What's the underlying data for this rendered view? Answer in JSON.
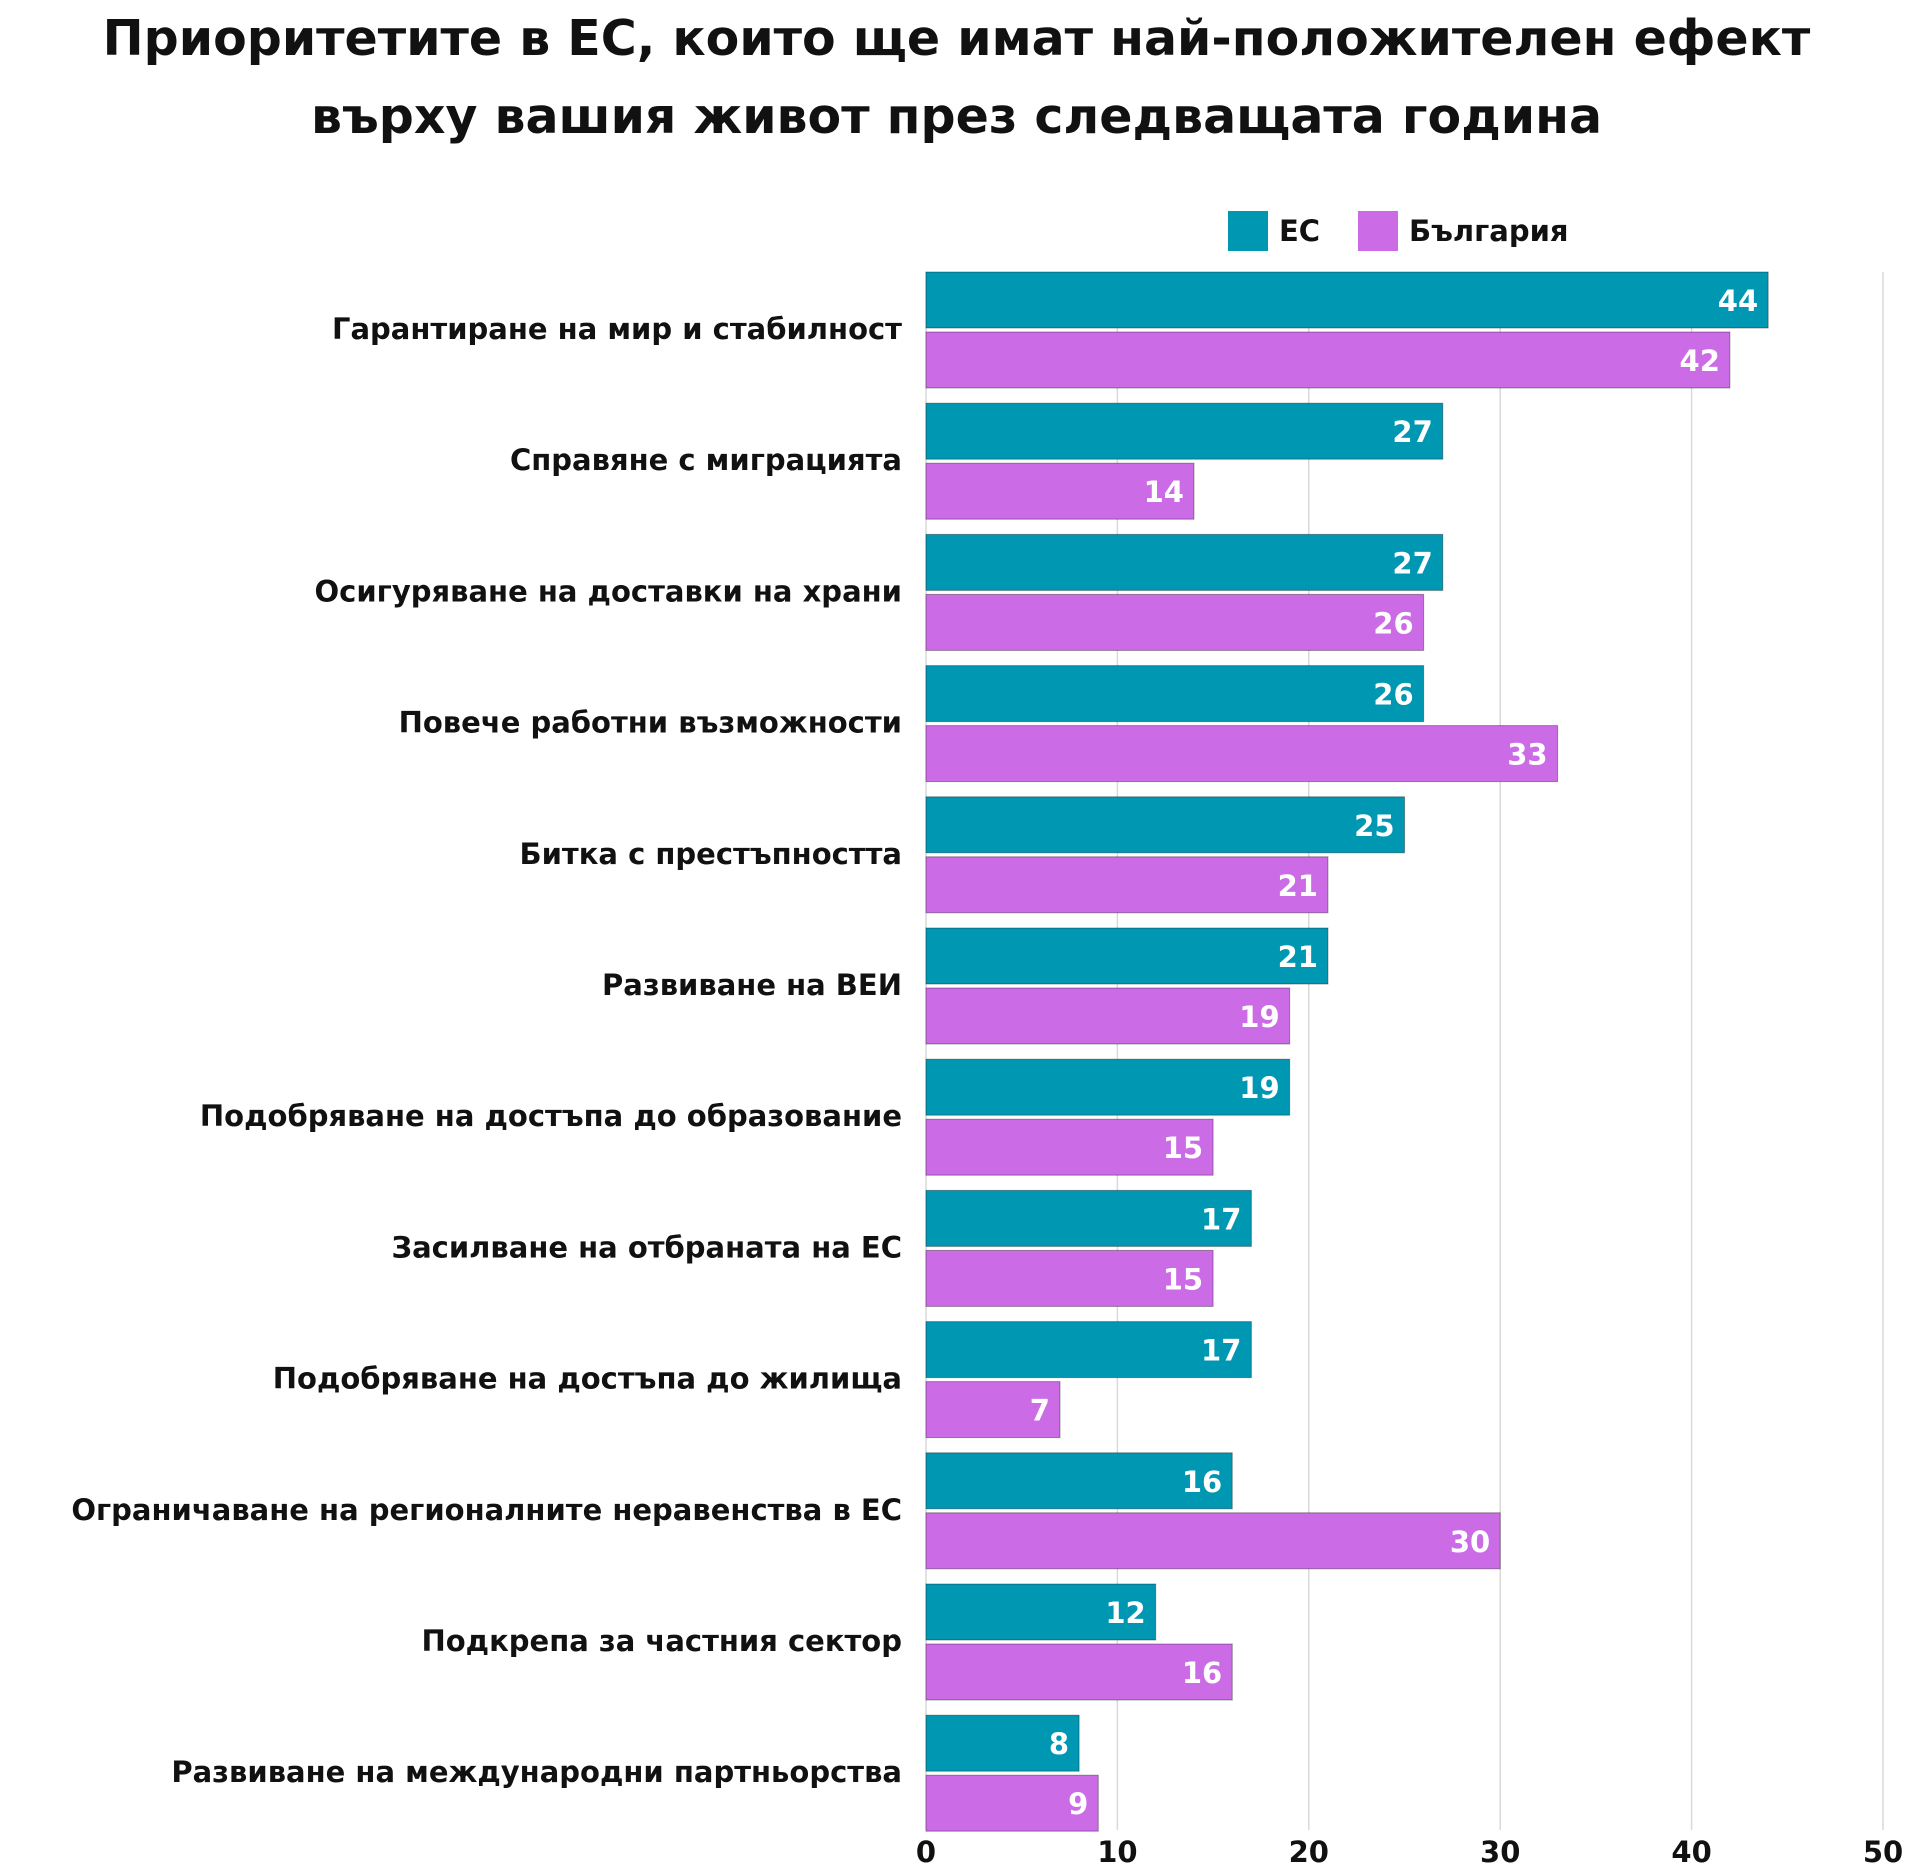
{
  "chart_data": {
    "type": "bar",
    "orientation": "horizontal",
    "title": [
      "Приоритетите в ЕС, които ще имат най-положителен ефект",
      "върху вашия живот през следващата година"
    ],
    "categories": [
      "Гарантиране на мир и стабилност",
      "Справяне с миграцията",
      "Осигуряване на доставки на храни",
      "Повече работни възможности",
      "Битка с престъпността",
      "Развиване на ВЕИ",
      "Подобряване на достъпа до образование",
      "Засилване на отбраната на ЕС",
      "Подобряване на достъпа до жилища",
      "Ограничаване на регионалните неравенства в ЕС",
      "Подкрепа за частния сектор",
      "Развиване на международни партньорства"
    ],
    "series": [
      {
        "name": "ЕС",
        "color": "#0097b2",
        "values": [
          44,
          27,
          27,
          26,
          25,
          21,
          19,
          17,
          17,
          16,
          12,
          8
        ]
      },
      {
        "name": "България",
        "color": "#cb6ce6",
        "values": [
          42,
          14,
          26,
          33,
          21,
          19,
          15,
          15,
          7,
          30,
          16,
          9
        ]
      }
    ],
    "xlim": [
      0,
      50
    ],
    "xticks": [
      "0",
      "10",
      "20",
      "30",
      "40",
      "50"
    ],
    "grid": true,
    "legend_position": "top",
    "data_labels": true
  }
}
